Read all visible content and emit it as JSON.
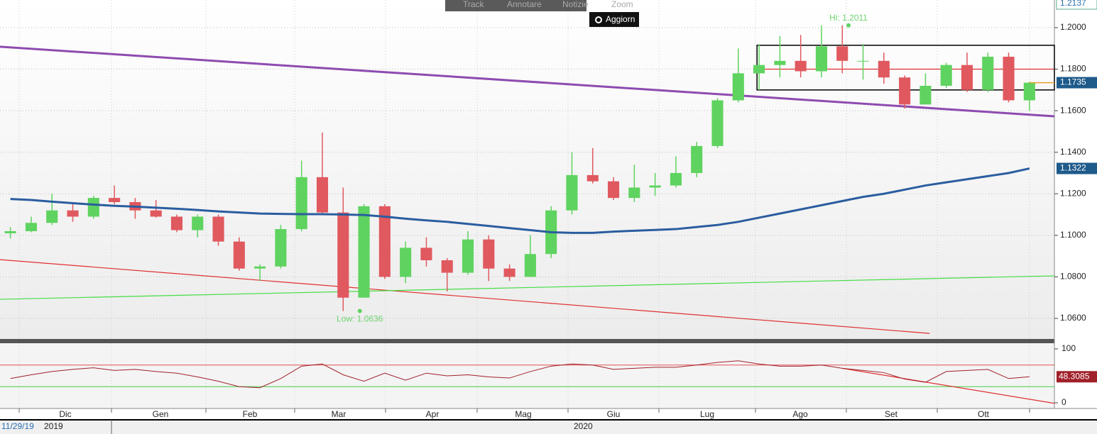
{
  "toolbar": {
    "buttons": [
      "Track",
      "Annotare",
      "Notizie",
      "Zoom"
    ],
    "update": "Aggiorn"
  },
  "chart_data": {
    "type": "candlestick",
    "xlim": [
      -0.5,
      50.2
    ],
    "ylim": [
      1.0501,
      1.2133
    ],
    "yticks": [
      {
        "value": 1.06,
        "label": "1.0600"
      },
      {
        "value": 1.08,
        "label": "1.0800"
      },
      {
        "value": 1.1,
        "label": "1.1000"
      },
      {
        "value": 1.12,
        "label": "1.1200"
      },
      {
        "value": 1.14,
        "label": "1.1400"
      },
      {
        "value": 1.16,
        "label": "1.1600"
      },
      {
        "value": 1.18,
        "label": "1.1800"
      },
      {
        "value": 1.2,
        "label": "1.2000"
      }
    ],
    "grid": true,
    "up_color": "#5fd35f",
    "down_color": "#e0595f",
    "ohlc": [
      [
        1.101,
        1.104,
        1.0985,
        1.102
      ],
      [
        1.102,
        1.109,
        1.1015,
        1.106
      ],
      [
        1.106,
        1.12,
        1.105,
        1.112
      ],
      [
        1.112,
        1.115,
        1.1065,
        1.109
      ],
      [
        1.109,
        1.119,
        1.108,
        1.118
      ],
      [
        1.118,
        1.124,
        1.115,
        1.116
      ],
      [
        1.116,
        1.118,
        1.108,
        1.112
      ],
      [
        1.112,
        1.117,
        1.1085,
        1.109
      ],
      [
        1.109,
        1.11,
        1.1015,
        1.1025
      ],
      [
        1.1025,
        1.11,
        1.099,
        1.109
      ],
      [
        1.109,
        1.11,
        1.095,
        1.097
      ],
      [
        1.097,
        1.099,
        1.083,
        1.084
      ],
      [
        1.084,
        1.086,
        1.078,
        1.085
      ],
      [
        1.085,
        1.105,
        1.084,
        1.103
      ],
      [
        1.103,
        1.136,
        1.102,
        1.128
      ],
      [
        1.128,
        1.1495,
        1.11,
        1.111
      ],
      [
        1.111,
        1.123,
        1.0636,
        1.07
      ],
      [
        1.07,
        1.115,
        1.07,
        1.114
      ],
      [
        1.114,
        1.115,
        1.079,
        1.08
      ],
      [
        1.08,
        1.097,
        1.077,
        1.094
      ],
      [
        1.094,
        1.099,
        1.085,
        1.088
      ],
      [
        1.088,
        1.089,
        1.073,
        1.082
      ],
      [
        1.082,
        1.102,
        1.081,
        1.098
      ],
      [
        1.098,
        1.1,
        1.078,
        1.084
      ],
      [
        1.084,
        1.086,
        1.078,
        1.08
      ],
      [
        1.08,
        1.1,
        1.08,
        1.091
      ],
      [
        1.091,
        1.114,
        1.089,
        1.112
      ],
      [
        1.112,
        1.14,
        1.11,
        1.129
      ],
      [
        1.129,
        1.142,
        1.125,
        1.126
      ],
      [
        1.126,
        1.128,
        1.117,
        1.118
      ],
      [
        1.118,
        1.134,
        1.116,
        1.123
      ],
      [
        1.123,
        1.13,
        1.119,
        1.124
      ],
      [
        1.124,
        1.138,
        1.123,
        1.13
      ],
      [
        1.13,
        1.145,
        1.128,
        1.143
      ],
      [
        1.143,
        1.166,
        1.142,
        1.165
      ],
      [
        1.165,
        1.19,
        1.164,
        1.178
      ],
      [
        1.178,
        1.192,
        1.17,
        1.182
      ],
      [
        1.182,
        1.196,
        1.176,
        1.184
      ],
      [
        1.184,
        1.1965,
        1.176,
        1.179
      ],
      [
        1.179,
        1.2011,
        1.176,
        1.191
      ],
      [
        1.191,
        1.2011,
        1.178,
        1.184
      ],
      [
        1.184,
        1.192,
        1.175,
        1.184
      ],
      [
        1.184,
        1.188,
        1.173,
        1.176
      ],
      [
        1.176,
        1.177,
        1.161,
        1.163
      ],
      [
        1.163,
        1.178,
        1.164,
        1.172
      ],
      [
        1.172,
        1.183,
        1.171,
        1.182
      ],
      [
        1.182,
        1.188,
        1.169,
        1.17
      ],
      [
        1.17,
        1.188,
        1.169,
        1.186
      ],
      [
        1.186,
        1.188,
        1.164,
        1.165
      ],
      [
        1.165,
        1.174,
        1.16,
        1.1735
      ]
    ],
    "moving_average": {
      "color": "#2a5d9f",
      "values": [
        1.1175,
        1.117,
        1.1162,
        1.1155,
        1.1148,
        1.1142,
        1.1138,
        1.1133,
        1.1128,
        1.1122,
        1.1115,
        1.111,
        1.1105,
        1.1103,
        1.1102,
        1.1102,
        1.11,
        1.1098,
        1.109,
        1.108,
        1.1072,
        1.1065,
        1.1055,
        1.1045,
        1.1035,
        1.1025,
        1.1015,
        1.1012,
        1.1012,
        1.1018,
        1.1022,
        1.1026,
        1.103,
        1.104,
        1.105,
        1.1065,
        1.1085,
        1.1105,
        1.1125,
        1.1145,
        1.1165,
        1.1185,
        1.12,
        1.122,
        1.124,
        1.1255,
        1.127,
        1.1285,
        1.13,
        1.1322
      ]
    },
    "lines": [
      {
        "color": "#8e4bb0",
        "width": 3,
        "x": [
          -0.5,
          50.2
        ],
        "y": [
          1.1908,
          1.1573
        ]
      },
      {
        "color": "#e03030",
        "width": 1.2,
        "x": [
          -0.5,
          44.2
        ],
        "y": [
          1.0883,
          1.0528
        ]
      },
      {
        "color": "#44dd44",
        "width": 1.2,
        "x": [
          -0.5,
          50.2
        ],
        "y": [
          1.0692,
          1.0805
        ]
      },
      {
        "color": "#e03030",
        "width": 1.2,
        "x": [
          35.9,
          50.2
        ],
        "y": [
          1.18,
          1.18
        ]
      }
    ],
    "box": {
      "color": "#000000",
      "x": [
        35.9,
        50.2
      ],
      "y": [
        1.17,
        1.1915
      ]
    },
    "annotations": [
      {
        "text": "Hi: 1.2011",
        "x": 40.3,
        "y": 1.2011
      },
      {
        "text": "Low: 1.0636",
        "x": 16.8,
        "y": 1.0636
      }
    ],
    "price_labels": [
      1.2137,
      1.1735,
      1.1322
    ],
    "month_labels": [
      "Dic",
      "Gen",
      "Feb",
      "Mar",
      "Apr",
      "Mag",
      "Giu",
      "Lug",
      "Ago",
      "Set",
      "Ott"
    ],
    "years": [
      "2019",
      "2020"
    ],
    "start_date": "11/29/19",
    "rsi": {
      "ylim": [
        0,
        100
      ],
      "yticks": [
        0,
        100
      ],
      "levels": [
        70,
        30
      ],
      "color": "#a0202a",
      "values": [
        45,
        52,
        58,
        62,
        65,
        60,
        62,
        58,
        55,
        48,
        40,
        30,
        28,
        45,
        68,
        72,
        52,
        40,
        55,
        42,
        55,
        50,
        52,
        48,
        46,
        58,
        68,
        72,
        70,
        62,
        64,
        66,
        66,
        70,
        75,
        78,
        72,
        68,
        68,
        70,
        64,
        60,
        56,
        44,
        38,
        58,
        60,
        62,
        45,
        48.3085
      ],
      "trend": {
        "x": [
          40,
          50.2
        ],
        "y": [
          64,
          -1
        ]
      }
    }
  }
}
